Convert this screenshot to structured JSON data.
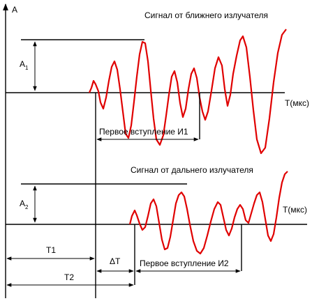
{
  "axis_label_amplitude": "A",
  "signal_near_title": "Сигнал от ближнего излучателя",
  "signal_far_title": "Сигнал от дальнего излучателя",
  "time_axis_label_top": "T(мкс)",
  "time_axis_label_bottom": "T(мкс)",
  "amplitude_1": {
    "base": "A",
    "sub": "1"
  },
  "amplitude_2": {
    "base": "A",
    "sub": "2"
  },
  "first_arrival_1": "Первое вступление И1",
  "first_arrival_2": "Первое вступление И2",
  "t1_label": "T1",
  "t2_label": "T2",
  "delta_t_label": "ΔT",
  "colors": {
    "signal": "#e00000",
    "lines": "#000000",
    "background": "#ffffff"
  }
}
